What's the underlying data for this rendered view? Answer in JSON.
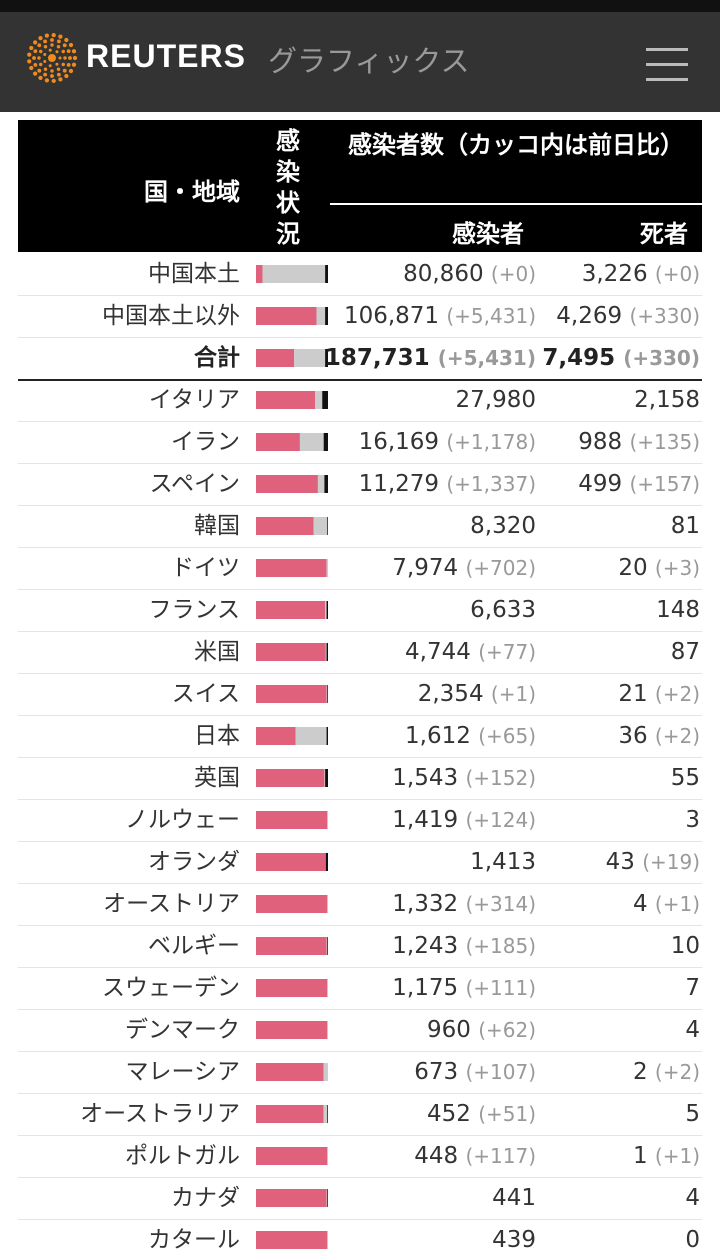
{
  "header": {
    "brand": "REUTERS",
    "section": "グラフィックス"
  },
  "table": {
    "columns": {
      "region": "国・地域",
      "status": "感染状況",
      "counts": "感染者数（カッコ内は前日比）",
      "cases": "感染者",
      "deaths": "死者"
    },
    "rows": [
      {
        "name": "中国本土",
        "status": [
          9,
          87,
          4
        ],
        "cases": "80,860",
        "cases_change": "(+0)",
        "deaths": "3,226",
        "deaths_change": "(+0)"
      },
      {
        "name": "中国本土以外",
        "status": [
          84,
          12,
          4
        ],
        "cases": "106,871",
        "cases_change": "(+5,431)",
        "deaths": "4,269",
        "deaths_change": "(+330)"
      },
      {
        "name": "合計",
        "status": [
          53,
          43,
          4
        ],
        "cases": "187,731",
        "cases_change": "(+5,431)",
        "deaths": "7,495",
        "deaths_change": "(+330)"
      },
      {
        "name": "イタリア",
        "status": [
          82,
          10,
          8
        ],
        "cases": "27,980",
        "deaths": "2,158"
      },
      {
        "name": "イラン",
        "status": [
          61,
          33,
          6
        ],
        "cases": "16,169",
        "cases_change": "(+1,178)",
        "deaths": "988",
        "deaths_change": "(+135)"
      },
      {
        "name": "スペイン",
        "status": [
          86,
          9,
          5
        ],
        "cases": "11,279",
        "cases_change": "(+1,337)",
        "deaths": "499",
        "deaths_change": "(+157)"
      },
      {
        "name": "韓国",
        "status": [
          80,
          19,
          1
        ],
        "cases": "8,320",
        "deaths": "81"
      },
      {
        "name": "ドイツ",
        "status": [
          98,
          2,
          0
        ],
        "cases": "7,974",
        "cases_change": "(+702)",
        "deaths": "20",
        "deaths_change": "(+3)"
      },
      {
        "name": "フランス",
        "status": [
          96,
          2,
          2
        ],
        "cases": "6,633",
        "deaths": "148"
      },
      {
        "name": "米国",
        "status": [
          97,
          1,
          2
        ],
        "cases": "4,744",
        "cases_change": "(+77)",
        "deaths": "87"
      },
      {
        "name": "スイス",
        "status": [
          98,
          1,
          1
        ],
        "cases": "2,354",
        "cases_change": "(+1)",
        "deaths": "21",
        "deaths_change": "(+2)"
      },
      {
        "name": "日本",
        "status": [
          55,
          43,
          2
        ],
        "cases": "1,612",
        "cases_change": "(+65)",
        "deaths": "36",
        "deaths_change": "(+2)"
      },
      {
        "name": "英国",
        "status": [
          95,
          1,
          4
        ],
        "cases": "1,543",
        "cases_change": "(+152)",
        "deaths": "55"
      },
      {
        "name": "ノルウェー",
        "status": [
          99,
          1,
          0
        ],
        "cases": "1,419",
        "cases_change": "(+124)",
        "deaths": "3"
      },
      {
        "name": "オランダ",
        "status": [
          97,
          0,
          3
        ],
        "cases": "1,413",
        "deaths": "43",
        "deaths_change": "(+19)"
      },
      {
        "name": "オーストリア",
        "status": [
          99,
          1,
          0
        ],
        "cases": "1,332",
        "cases_change": "(+314)",
        "deaths": "4",
        "deaths_change": "(+1)"
      },
      {
        "name": "ベルギー",
        "status": [
          98,
          1,
          1
        ],
        "cases": "1,243",
        "cases_change": "(+185)",
        "deaths": "10"
      },
      {
        "name": "スウェーデン",
        "status": [
          99,
          1,
          0
        ],
        "cases": "1,175",
        "cases_change": "(+111)",
        "deaths": "7"
      },
      {
        "name": "デンマーク",
        "status": [
          99,
          1,
          0
        ],
        "cases": "960",
        "cases_change": "(+62)",
        "deaths": "4"
      },
      {
        "name": "マレーシア",
        "status": [
          94,
          6,
          0
        ],
        "cases": "673",
        "cases_change": "(+107)",
        "deaths": "2",
        "deaths_change": "(+2)"
      },
      {
        "name": "オーストラリア",
        "status": [
          94,
          5,
          1
        ],
        "cases": "452",
        "cases_change": "(+51)",
        "deaths": "5"
      },
      {
        "name": "ポルトガル",
        "status": [
          99,
          1,
          0
        ],
        "cases": "448",
        "cases_change": "(+117)",
        "deaths": "1",
        "deaths_change": "(+1)"
      },
      {
        "name": "カナダ",
        "status": [
          98,
          1,
          1
        ],
        "cases": "441",
        "deaths": "4"
      },
      {
        "name": "カタール",
        "status": [
          99,
          1,
          0
        ],
        "cases": "439",
        "deaths": "0"
      }
    ]
  }
}
